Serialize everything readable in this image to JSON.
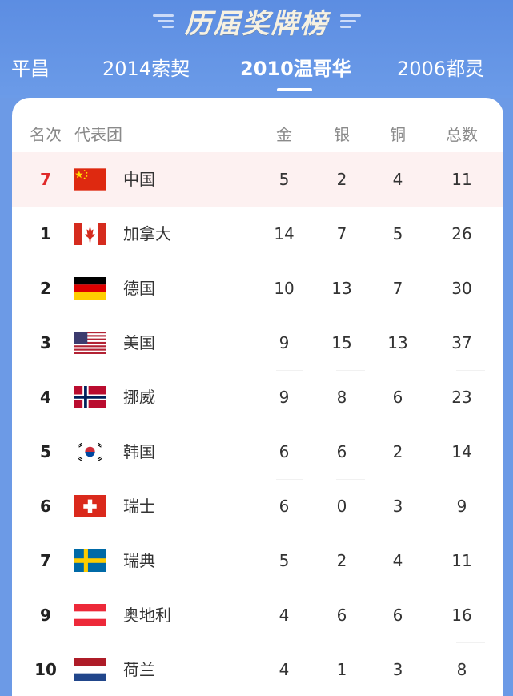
{
  "header": {
    "title": "历届奖牌榜",
    "tabs": [
      {
        "label": "平昌",
        "active": false
      },
      {
        "label": "2014索契",
        "active": false
      },
      {
        "label": "2010温哥华",
        "active": true
      },
      {
        "label": "2006都灵",
        "active": false
      }
    ]
  },
  "table": {
    "columns": {
      "rank": "名次",
      "team": "代表团",
      "gold": "金",
      "silver": "银",
      "bronze": "铜",
      "total": "总数"
    },
    "rows": [
      {
        "rank": "7",
        "team": "中国",
        "flag": "china-flag-icon",
        "gold": "5",
        "silver": "2",
        "bronze": "4",
        "total": "11",
        "highlight": true
      },
      {
        "rank": "1",
        "team": "加拿大",
        "flag": "canada-flag-icon",
        "gold": "14",
        "silver": "7",
        "bronze": "5",
        "total": "26"
      },
      {
        "rank": "2",
        "team": "德国",
        "flag": "germany-flag-icon",
        "gold": "10",
        "silver": "13",
        "bronze": "7",
        "total": "30"
      },
      {
        "rank": "3",
        "team": "美国",
        "flag": "usa-flag-icon",
        "gold": "9",
        "silver": "15",
        "bronze": "13",
        "total": "37"
      },
      {
        "rank": "4",
        "team": "挪威",
        "flag": "norway-flag-icon",
        "gold": "9",
        "silver": "8",
        "bronze": "6",
        "total": "23"
      },
      {
        "rank": "5",
        "team": "韩国",
        "flag": "korea-flag-icon",
        "gold": "6",
        "silver": "6",
        "bronze": "2",
        "total": "14"
      },
      {
        "rank": "6",
        "team": "瑞士",
        "flag": "switzerland-flag-icon",
        "gold": "6",
        "silver": "0",
        "bronze": "3",
        "total": "9"
      },
      {
        "rank": "7",
        "team": "瑞典",
        "flag": "sweden-flag-icon",
        "gold": "5",
        "silver": "2",
        "bronze": "4",
        "total": "11"
      },
      {
        "rank": "9",
        "team": "奥地利",
        "flag": "austria-flag-icon",
        "gold": "4",
        "silver": "6",
        "bronze": "6",
        "total": "16"
      },
      {
        "rank": "10",
        "team": "荷兰",
        "flag": "netherlands-flag-icon",
        "gold": "4",
        "silver": "1",
        "bronze": "3",
        "total": "8"
      }
    ]
  },
  "colors": {
    "header_bg": "#5c8de2",
    "highlight_bg": "#fdf1f1",
    "highlight_rank": "#e02a2a"
  }
}
